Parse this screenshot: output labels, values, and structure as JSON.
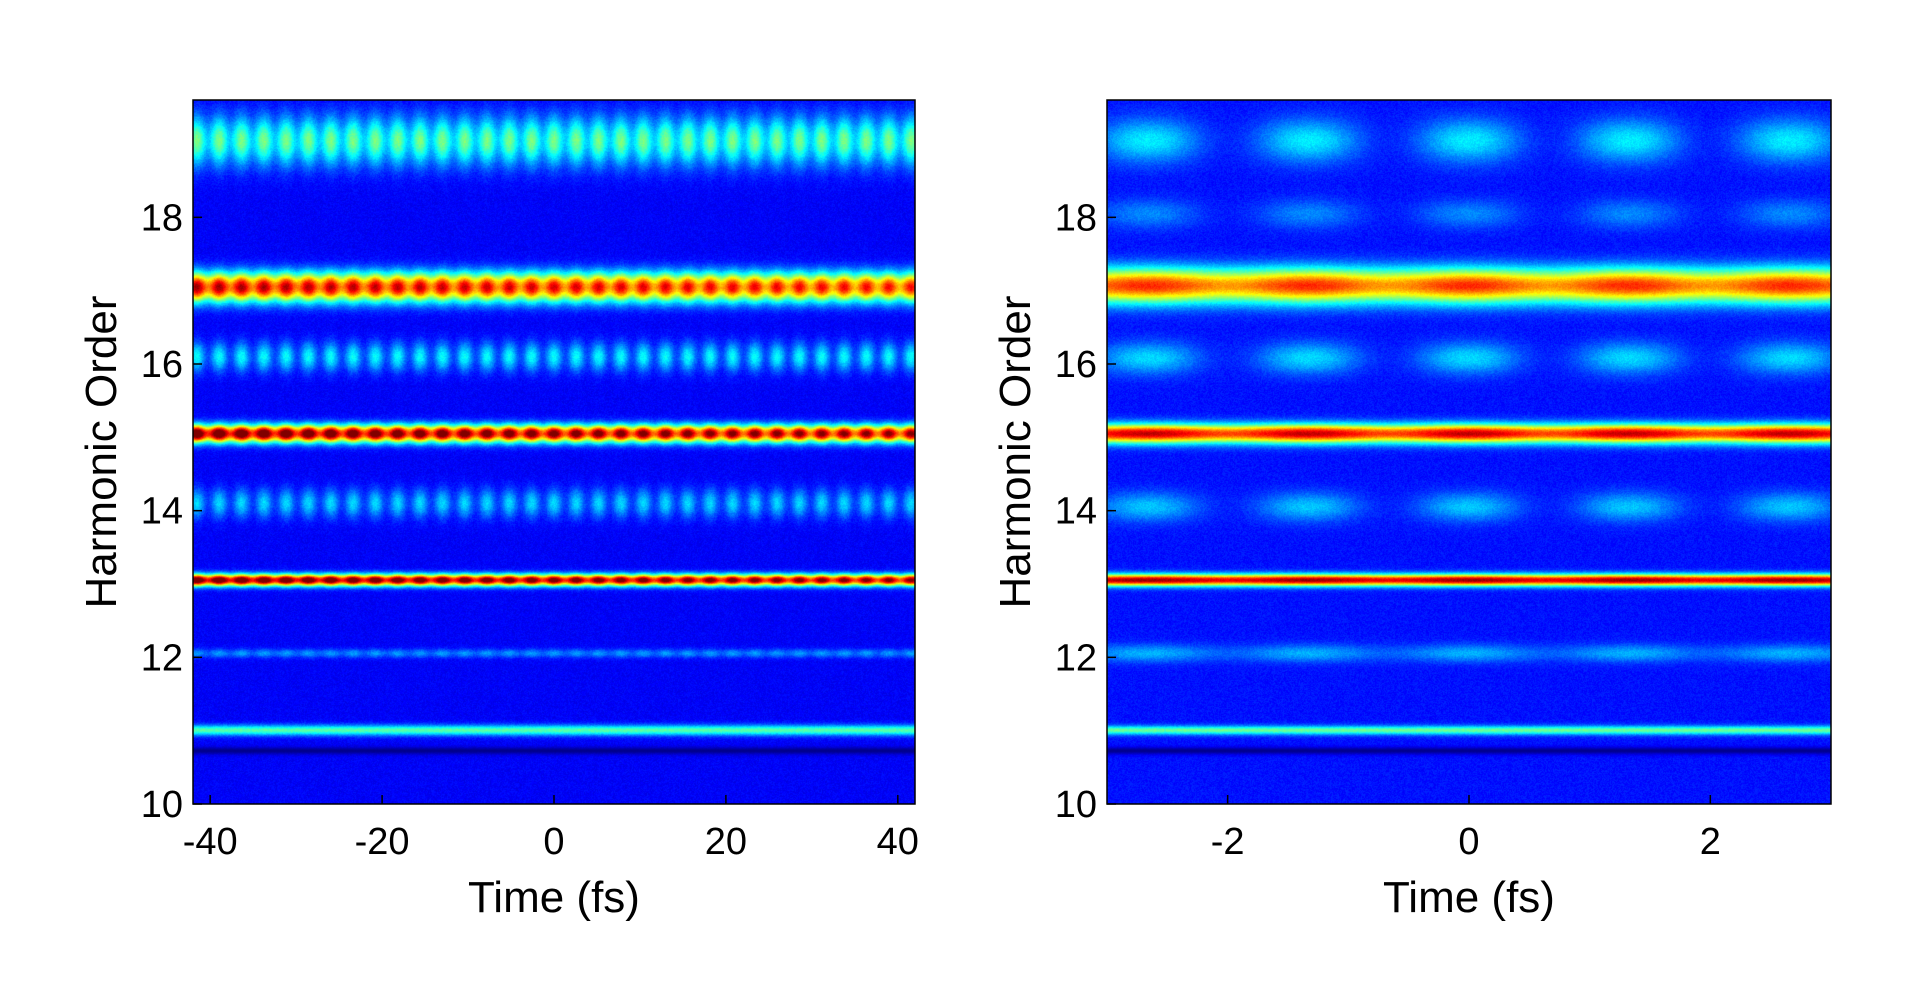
{
  "chart_data": [
    {
      "type": "heatmap",
      "id": "left",
      "title": "",
      "xlabel": "Time (fs)",
      "ylabel": "Harmonic Order",
      "xlim": [
        -42,
        42
      ],
      "ylim": [
        10,
        19.6
      ],
      "xticks": [
        -40,
        -20,
        0,
        20,
        40
      ],
      "yticks": [
        10,
        12,
        14,
        16,
        18
      ],
      "colormap": "jet",
      "background_intensity": 0.12,
      "bands": [
        {
          "harmonic": 19.05,
          "width": 0.34,
          "peak": 0.38,
          "fringe": 0.45,
          "fringe_period_fs": 2.6,
          "decay_fs": 0
        },
        {
          "harmonic": 18.0,
          "width": 0.14,
          "peak": 0.0,
          "fringe": 0.0,
          "fringe_period_fs": 2.6,
          "decay_fs": 0
        },
        {
          "harmonic": 17.05,
          "width": 0.2,
          "peak": 0.78,
          "fringe": 0.25,
          "fringe_period_fs": 2.6,
          "decay_fs": 120
        },
        {
          "harmonic": 16.1,
          "width": 0.2,
          "peak": 0.26,
          "fringe": 0.7,
          "fringe_period_fs": 2.6,
          "decay_fs": 0
        },
        {
          "harmonic": 15.05,
          "width": 0.12,
          "peak": 0.95,
          "fringe": 0.3,
          "fringe_period_fs": 2.6,
          "decay_fs": 90
        },
        {
          "harmonic": 14.1,
          "width": 0.2,
          "peak": 0.22,
          "fringe": 0.7,
          "fringe_period_fs": 2.6,
          "decay_fs": 0
        },
        {
          "harmonic": 13.05,
          "width": 0.08,
          "peak": 0.94,
          "fringe": 0.25,
          "fringe_period_fs": 2.6,
          "decay_fs": 110
        },
        {
          "harmonic": 12.05,
          "width": 0.06,
          "peak": 0.16,
          "fringe": 0.4,
          "fringe_period_fs": 2.6,
          "decay_fs": 0
        },
        {
          "harmonic": 11.0,
          "width": 0.07,
          "peak": 0.34,
          "fringe": 0.0,
          "fringe_period_fs": 2.6,
          "decay_fs": 0
        }
      ],
      "dark_line_harmonic": 10.72
    },
    {
      "type": "heatmap",
      "id": "right",
      "title": "",
      "xlabel": "Time (fs)",
      "ylabel": "Harmonic Order",
      "xlim": [
        -3,
        3
      ],
      "ylim": [
        10,
        19.6
      ],
      "xticks": [
        -2,
        0,
        2
      ],
      "yticks": [
        10,
        12,
        14,
        16,
        18
      ],
      "colormap": "jet",
      "background_intensity": 0.14,
      "bands": [
        {
          "harmonic": 19.05,
          "width": 0.3,
          "peak": 0.22,
          "fringe": 0.9,
          "fringe_period_fs": 1.33,
          "decay_fs": 0
        },
        {
          "harmonic": 18.05,
          "width": 0.2,
          "peak": 0.12,
          "fringe": 0.9,
          "fringe_period_fs": 1.33,
          "decay_fs": 0
        },
        {
          "harmonic": 17.07,
          "width": 0.24,
          "peak": 0.7,
          "fringe": 0.16,
          "fringe_period_fs": 1.33,
          "decay_fs": 0
        },
        {
          "harmonic": 16.08,
          "width": 0.22,
          "peak": 0.2,
          "fringe": 0.9,
          "fringe_period_fs": 1.33,
          "decay_fs": 0
        },
        {
          "harmonic": 15.05,
          "width": 0.13,
          "peak": 0.8,
          "fringe": 0.16,
          "fringe_period_fs": 1.33,
          "decay_fs": 0
        },
        {
          "harmonic": 14.05,
          "width": 0.2,
          "peak": 0.18,
          "fringe": 0.9,
          "fringe_period_fs": 1.33,
          "decay_fs": 0
        },
        {
          "harmonic": 13.05,
          "width": 0.08,
          "peak": 0.84,
          "fringe": 0.1,
          "fringe_period_fs": 1.33,
          "decay_fs": 0
        },
        {
          "harmonic": 12.05,
          "width": 0.12,
          "peak": 0.16,
          "fringe": 0.5,
          "fringe_period_fs": 1.33,
          "decay_fs": 0
        },
        {
          "harmonic": 11.0,
          "width": 0.06,
          "peak": 0.34,
          "fringe": 0.0,
          "fringe_period_fs": 1.33,
          "decay_fs": 0
        }
      ],
      "dark_line_harmonic": 10.72
    }
  ]
}
